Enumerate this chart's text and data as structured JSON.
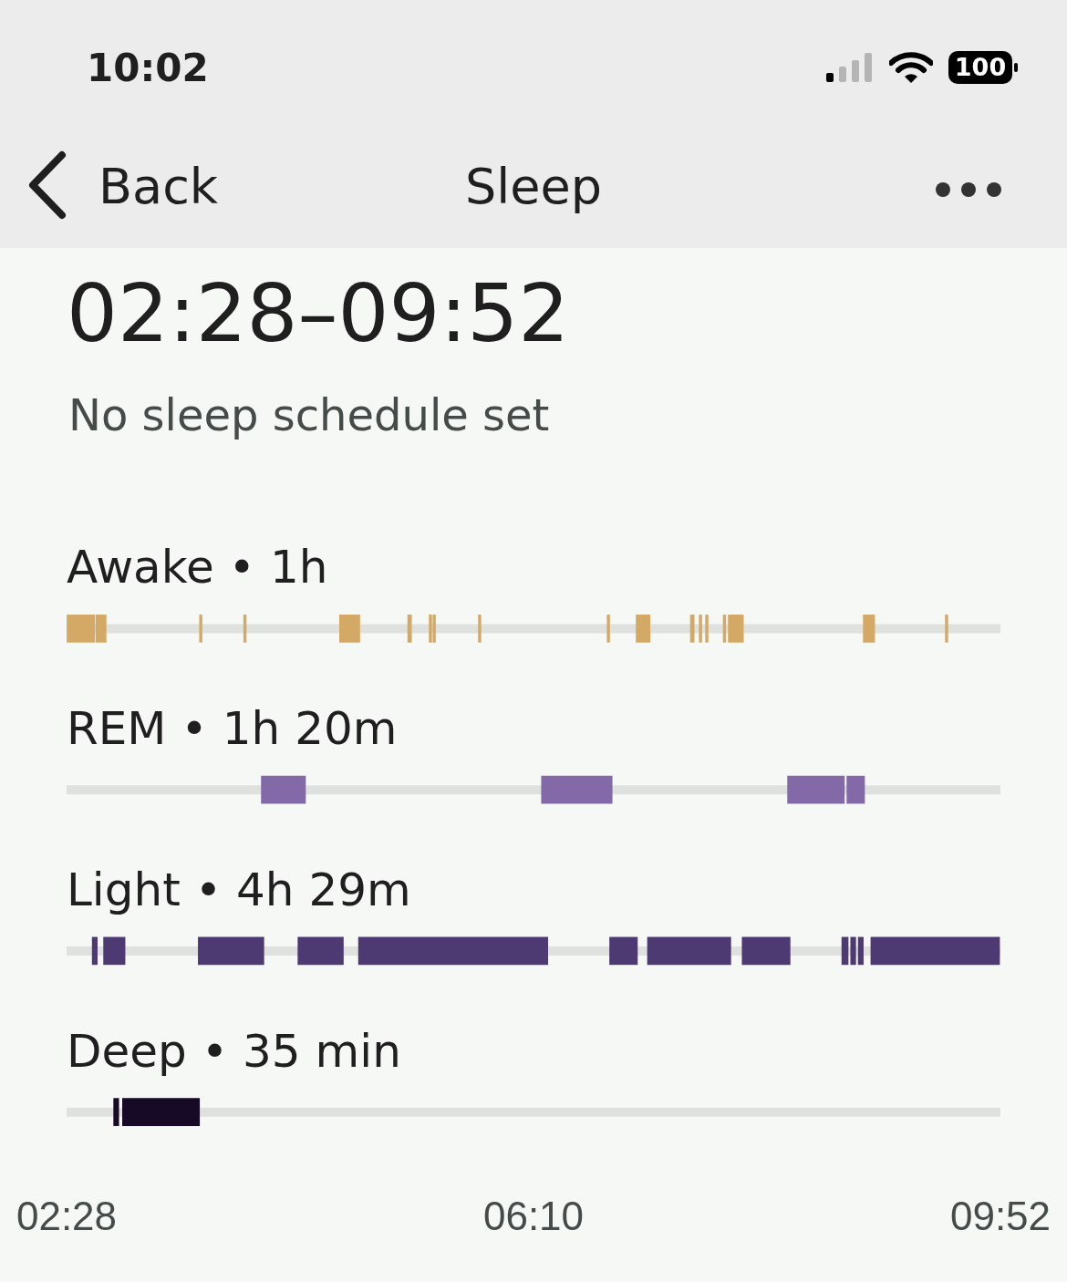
{
  "chart_data": {
    "type": "bar",
    "orientation": "horizontal",
    "title": "02:28–09:52",
    "subtitle": "No sleep schedule set",
    "annotations": [
      "10:02",
      "100",
      "Back",
      "Sleep"
    ],
    "categories": [
      "Awake • 1h",
      "REM • 1h 20m",
      "Light • 4h 29m",
      "Deep • 35 min"
    ],
    "xlim": [
      2.4667,
      9.8667
    ],
    "xticks": [
      {
        "value": 2.4667,
        "label": "02:28"
      },
      {
        "value": 6.1667,
        "label": "06:10"
      },
      {
        "value": 9.8667,
        "label": "09:52"
      }
    ],
    "grid": false,
    "legend": false,
    "series": [
      {
        "values": [
          0.22,
          0.35,
          0.04,
          0.04
        ],
        "base": [
          2.47,
          4.01,
          2.67,
          2.84
        ],
        "colors": [
          "#d4a865",
          "#8369a7",
          "#4e3a72",
          "#170a26"
        ]
      },
      {
        "values": [
          0.08,
          0.56,
          0.17,
          0.61
        ],
        "base": [
          2.7,
          6.23,
          2.76,
          2.91
        ],
        "colors": [
          "#d4a865",
          "#8369a7",
          "#4e3a72",
          "#170a26"
        ]
      },
      {
        "values": [
          0.02,
          0.45,
          0.52,
          null
        ],
        "base": [
          3.52,
          8.18,
          3.51,
          null
        ],
        "colors": [
          "#d4a865",
          "#8369a7",
          "#4e3a72",
          null
        ]
      },
      {
        "values": [
          0.02,
          0.14,
          0.36,
          null
        ],
        "base": [
          3.87,
          8.65,
          4.3,
          null
        ],
        "colors": [
          "#d4a865",
          "#8369a7",
          "#4e3a72",
          null
        ]
      },
      {
        "values": [
          0.16,
          null,
          1.5,
          null
        ],
        "base": [
          4.63,
          null,
          4.78,
          null
        ],
        "colors": [
          "#d4a865",
          null,
          "#4e3a72",
          null
        ]
      },
      {
        "values": [
          0.03,
          null,
          0.22,
          null
        ],
        "base": [
          5.17,
          null,
          6.77,
          null
        ],
        "colors": [
          "#d4a865",
          null,
          "#4e3a72",
          null
        ]
      },
      {
        "values": [
          0.02,
          null,
          0.66,
          null
        ],
        "base": [
          5.34,
          null,
          7.07,
          null
        ],
        "colors": [
          "#d4a865",
          null,
          "#4e3a72",
          null
        ]
      },
      {
        "values": [
          0.02,
          null,
          0.38,
          null
        ],
        "base": [
          5.37,
          null,
          7.82,
          null
        ],
        "colors": [
          "#d4a865",
          null,
          "#4e3a72",
          null
        ]
      },
      {
        "values": [
          0.02,
          null,
          0.05,
          null
        ],
        "base": [
          5.73,
          null,
          8.61,
          null
        ],
        "colors": [
          "#d4a865",
          null,
          "#4e3a72",
          null
        ]
      },
      {
        "values": [
          0.02,
          null,
          0.04,
          null
        ],
        "base": [
          6.75,
          null,
          8.68,
          null
        ],
        "colors": [
          "#d4a865",
          null,
          "#4e3a72",
          null
        ]
      },
      {
        "values": [
          0.11,
          null,
          0.04,
          null
        ],
        "base": [
          6.98,
          null,
          8.74,
          null
        ],
        "colors": [
          "#d4a865",
          null,
          "#4e3a72",
          null
        ]
      },
      {
        "values": [
          0.03,
          null,
          1.02,
          null
        ],
        "base": [
          7.41,
          null,
          8.84,
          null
        ],
        "colors": [
          "#d4a865",
          null,
          "#4e3a72",
          null
        ]
      },
      {
        "values": [
          0.02,
          null,
          null,
          null
        ],
        "base": [
          7.48,
          null,
          null,
          null
        ],
        "colors": [
          "#d4a865",
          null,
          null,
          null
        ]
      },
      {
        "values": [
          0.02,
          null,
          null,
          null
        ],
        "base": [
          7.53,
          null,
          null,
          null
        ],
        "colors": [
          "#d4a865",
          null,
          null,
          null
        ]
      },
      {
        "values": [
          0.02,
          null,
          null,
          null
        ],
        "base": [
          7.67,
          null,
          null,
          null
        ],
        "colors": [
          "#d4a865",
          null,
          null,
          null
        ]
      },
      {
        "values": [
          0.12,
          null,
          null,
          null
        ],
        "base": [
          7.71,
          null,
          null,
          null
        ],
        "colors": [
          "#d4a865",
          null,
          null,
          null
        ]
      },
      {
        "values": [
          0.09,
          null,
          null,
          null
        ],
        "base": [
          8.78,
          null,
          null,
          null
        ],
        "colors": [
          "#d4a865",
          null,
          null,
          null
        ]
      },
      {
        "values": [
          0.02,
          null,
          null,
          null
        ],
        "base": [
          9.43,
          null,
          null,
          null
        ],
        "colors": [
          "#d4a865",
          null,
          null,
          null
        ]
      }
    ]
  }
}
